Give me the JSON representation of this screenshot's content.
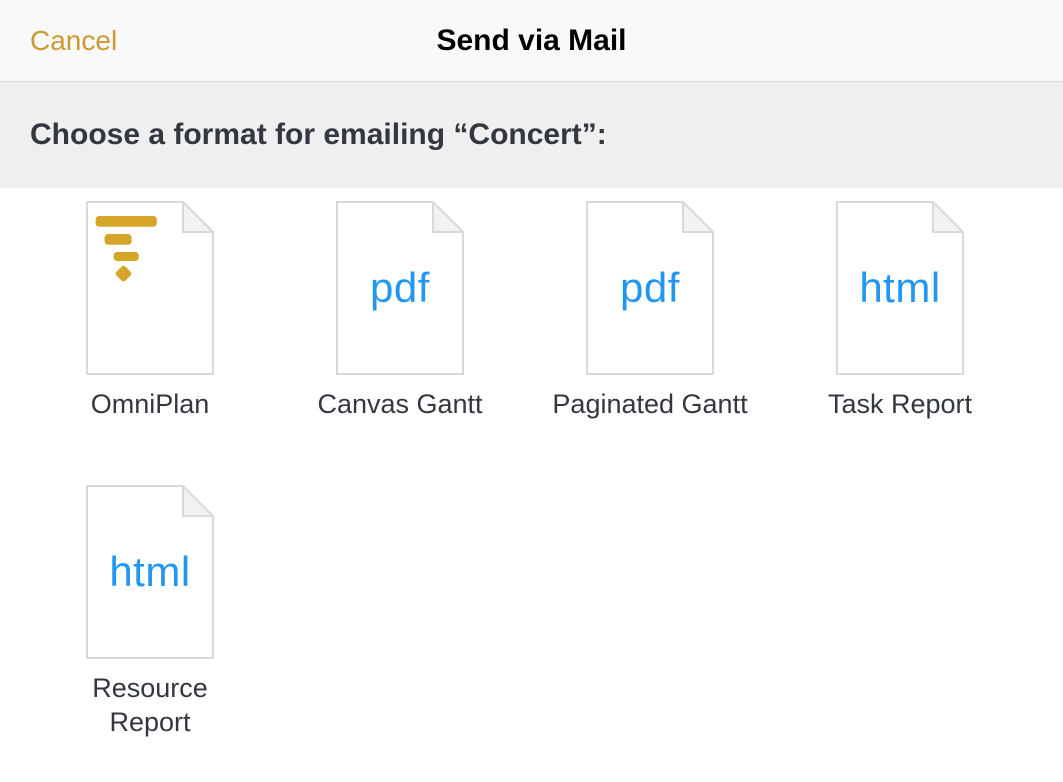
{
  "header": {
    "cancel_label": "Cancel",
    "title": "Send via Mail"
  },
  "subheader": {
    "prompt": "Choose a format for emailing “Concert”:"
  },
  "colors": {
    "header_bg": "#f9f9f9",
    "subheader_bg": "#efefef",
    "cancel_text": "#cc9933",
    "title_text": "#000000",
    "prompt_text": "#333740",
    "file_border": "#d9d9d9",
    "file_fold_fill": "#f2f2f2",
    "file_text_blue": "#2196f3",
    "omniplan_gold": "#d4a526",
    "label_text": "#333740"
  },
  "formats": [
    {
      "id": "omniplan",
      "label": "OmniPlan",
      "icon_kind": "omniplan",
      "icon_text": ""
    },
    {
      "id": "canvas-gantt",
      "label": "Canvas Gantt",
      "icon_kind": "text",
      "icon_text": "pdf"
    },
    {
      "id": "paginated-gantt",
      "label": "Paginated Gantt",
      "icon_kind": "text",
      "icon_text": "pdf"
    },
    {
      "id": "task-report",
      "label": "Task Report",
      "icon_kind": "text",
      "icon_text": "html"
    },
    {
      "id": "resource-report",
      "label": "Resource\nReport",
      "icon_kind": "text",
      "icon_text": "html"
    }
  ]
}
